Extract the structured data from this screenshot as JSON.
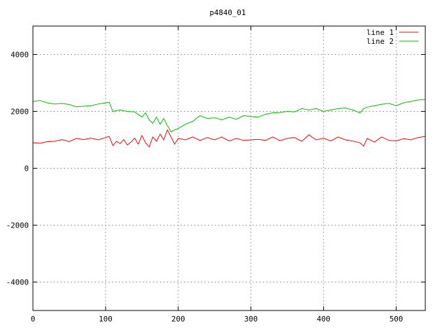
{
  "chart_data": {
    "type": "line",
    "title": "p4840_01",
    "xlabel": "",
    "ylabel": "",
    "xlim": [
      0,
      540
    ],
    "ylim": [
      -5000,
      5000
    ],
    "xticks": [
      0,
      100,
      200,
      300,
      400,
      500
    ],
    "yticks": [
      -4000,
      -2000,
      0,
      2000,
      4000
    ],
    "xtick_labels": [
      "0",
      "100",
      "200",
      "300",
      "400",
      "500"
    ],
    "ytick_labels": [
      "-4000",
      "-2000",
      "0",
      "2000",
      "4000"
    ],
    "grid": true,
    "legend_position": "top-right",
    "series": [
      {
        "name": "line 1",
        "color": "#ff0000",
        "x": [
          0,
          10,
          20,
          30,
          40,
          50,
          60,
          70,
          80,
          90,
          100,
          105,
          110,
          115,
          120,
          125,
          130,
          135,
          140,
          145,
          150,
          155,
          160,
          165,
          170,
          175,
          180,
          185,
          190,
          195,
          200,
          210,
          220,
          230,
          240,
          250,
          260,
          270,
          280,
          290,
          300,
          310,
          320,
          330,
          340,
          350,
          360,
          370,
          380,
          385,
          390,
          400,
          410,
          420,
          430,
          440,
          450,
          455,
          460,
          470,
          480,
          490,
          500,
          510,
          520,
          530,
          540
        ],
        "y": [
          900,
          880,
          940,
          950,
          1010,
          940,
          1050,
          1010,
          1060,
          1000,
          1080,
          1120,
          800,
          950,
          870,
          1010,
          820,
          920,
          1060,
          850,
          1150,
          900,
          750,
          1100,
          950,
          1200,
          1000,
          1350,
          1100,
          850,
          1050,
          1000,
          1100,
          980,
          1080,
          1000,
          1100,
          960,
          1050,
          980,
          1000,
          1020,
          980,
          1100,
          970,
          1050,
          1080,
          950,
          1180,
          1080,
          1000,
          1060,
          960,
          1100,
          1000,
          960,
          900,
          780,
          1050,
          920,
          1100,
          980,
          960,
          1040,
          1000,
          1080,
          1120
        ]
      },
      {
        "name": "line 2",
        "color": "#00c000",
        "x": [
          0,
          10,
          20,
          30,
          40,
          50,
          60,
          70,
          80,
          90,
          100,
          105,
          110,
          120,
          130,
          140,
          150,
          155,
          160,
          165,
          170,
          175,
          180,
          185,
          190,
          195,
          200,
          210,
          220,
          230,
          240,
          250,
          260,
          270,
          280,
          290,
          300,
          310,
          320,
          330,
          340,
          350,
          360,
          370,
          380,
          390,
          400,
          410,
          420,
          430,
          440,
          450,
          455,
          460,
          470,
          480,
          490,
          500,
          510,
          520,
          530,
          540
        ],
        "y": [
          2350,
          2380,
          2300,
          2260,
          2280,
          2240,
          2160,
          2180,
          2200,
          2260,
          2300,
          2320,
          2000,
          2050,
          2000,
          1980,
          1800,
          1950,
          1700,
          1580,
          1800,
          1550,
          1750,
          1500,
          1280,
          1350,
          1400,
          1550,
          1650,
          1850,
          1750,
          1780,
          1700,
          1800,
          1720,
          1850,
          1820,
          1800,
          1900,
          1950,
          1960,
          2000,
          1980,
          2100,
          2050,
          2100,
          2000,
          2050,
          2100,
          2120,
          2050,
          1950,
          2100,
          2150,
          2200,
          2250,
          2280,
          2200,
          2300,
          2350,
          2400,
          2420
        ]
      }
    ]
  }
}
